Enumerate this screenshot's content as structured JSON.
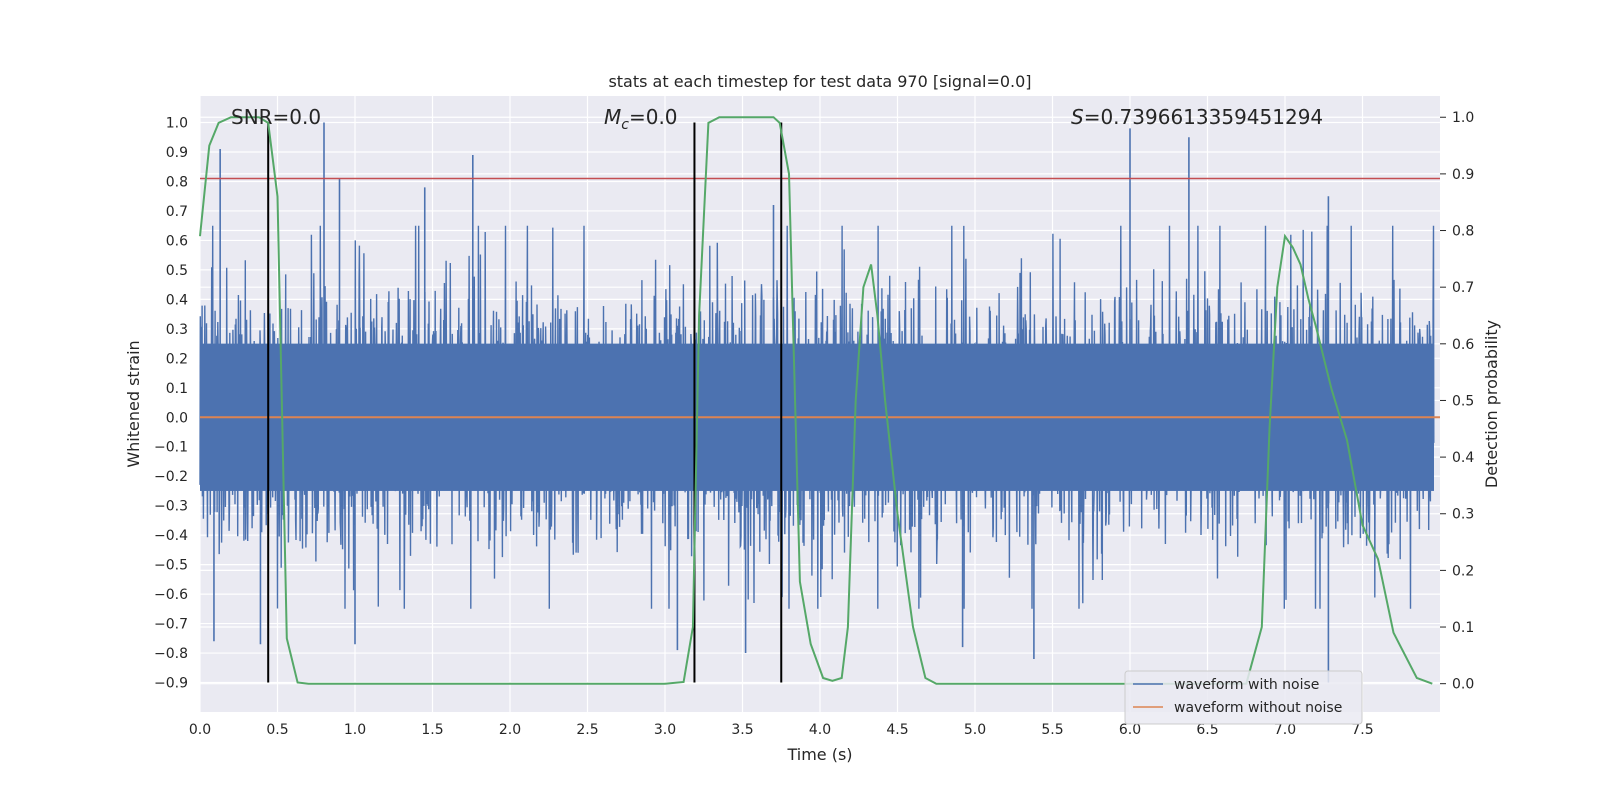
{
  "chart_data": {
    "type": "line",
    "title": "stats at each timestep for test data 970 [signal=0.0]",
    "xlabel": "Time (s)",
    "ylabel": "Whitened strain",
    "ylabel_right": "Detection probability",
    "xlim": [
      0.0,
      8.0
    ],
    "ylim": [
      -1.0,
      1.09
    ],
    "ylim_right": [
      -0.05,
      1.0375
    ],
    "xticks": [
      "0.0",
      "0.5",
      "1.0",
      "1.5",
      "2.0",
      "2.5",
      "3.0",
      "3.5",
      "4.0",
      "4.5",
      "5.0",
      "5.5",
      "6.0",
      "6.5",
      "7.0",
      "7.5"
    ],
    "yticks": [
      "1.0",
      "0.9",
      "0.8",
      "0.7",
      "0.6",
      "0.5",
      "0.4",
      "0.3",
      "0.2",
      "0.1",
      "0.0",
      "−0.1",
      "−0.2",
      "−0.3",
      "−0.4",
      "−0.5",
      "−0.6",
      "−0.7",
      "−0.8",
      "−0.9"
    ],
    "yticks_right": [
      "1.0",
      "0.9",
      "0.8",
      "0.7",
      "0.6",
      "0.5",
      "0.4",
      "0.3",
      "0.2",
      "0.1",
      "0.0"
    ],
    "grid": true,
    "legend_position": "bottom-right",
    "annotations": {
      "snr": "SNR=0.0",
      "mc_symbol": "M",
      "mc_sub": "c",
      "mc_value": "=0.0",
      "s_symbol": "S",
      "s_value": "=0.7396613359451294"
    },
    "threshold_line": {
      "y": 0.81,
      "color": "#c44e52"
    },
    "vertical_lines_x": [
      0.44,
      3.19,
      3.75
    ],
    "series": [
      {
        "name": "waveform with noise",
        "color": "#4c72b0",
        "envelope_typical": [
          -0.45,
          0.45
        ],
        "peaks": [
          [
            0.13,
            0.91
          ],
          [
            0.8,
            1.0
          ],
          [
            0.9,
            0.81
          ],
          [
            1.45,
            0.78
          ],
          [
            1.76,
            0.89
          ],
          [
            3.7,
            0.72
          ],
          [
            6.0,
            0.98
          ],
          [
            6.38,
            0.95
          ],
          [
            7.28,
            0.75
          ],
          [
            0.09,
            -0.76
          ],
          [
            0.39,
            -0.77
          ],
          [
            1.0,
            -0.77
          ],
          [
            3.08,
            -0.79
          ],
          [
            3.52,
            -0.8
          ],
          [
            4.92,
            -0.78
          ],
          [
            5.38,
            -0.82
          ],
          [
            7.28,
            -0.9
          ]
        ]
      },
      {
        "name": "waveform without noise",
        "color": "#dd8452",
        "values": [
          0.0
        ]
      },
      {
        "name": "detection probability",
        "color": "#55a868",
        "axis": "right",
        "x": [
          0.0,
          0.06,
          0.12,
          0.2,
          0.3,
          0.38,
          0.44,
          0.5,
          0.56,
          0.63,
          0.7,
          1.0,
          2.0,
          3.0,
          3.12,
          3.18,
          3.22,
          3.28,
          3.35,
          3.5,
          3.7,
          3.74,
          3.8,
          3.87,
          3.94,
          4.02,
          4.08,
          4.14,
          4.18,
          4.23,
          4.28,
          4.33,
          4.37,
          4.42,
          4.5,
          4.6,
          4.68,
          4.75,
          5.0,
          6.0,
          6.6,
          6.75,
          6.85,
          6.9,
          6.95,
          7.0,
          7.05,
          7.1,
          7.15,
          7.2,
          7.3,
          7.4,
          7.5,
          7.6,
          7.7,
          7.85,
          7.95
        ],
        "values": [
          0.79,
          0.95,
          0.99,
          1.0,
          1.0,
          1.0,
          0.99,
          0.86,
          0.08,
          0.002,
          0.0,
          0.0,
          0.0,
          0.0,
          0.003,
          0.1,
          0.65,
          0.99,
          1.0,
          1.0,
          1.0,
          0.99,
          0.9,
          0.18,
          0.07,
          0.01,
          0.005,
          0.01,
          0.1,
          0.5,
          0.7,
          0.74,
          0.65,
          0.5,
          0.3,
          0.1,
          0.01,
          0.0,
          0.0,
          0.0,
          0.0,
          0.0,
          0.1,
          0.45,
          0.7,
          0.79,
          0.77,
          0.74,
          0.68,
          0.63,
          0.52,
          0.43,
          0.28,
          0.22,
          0.09,
          0.01,
          0.0
        ]
      }
    ]
  }
}
